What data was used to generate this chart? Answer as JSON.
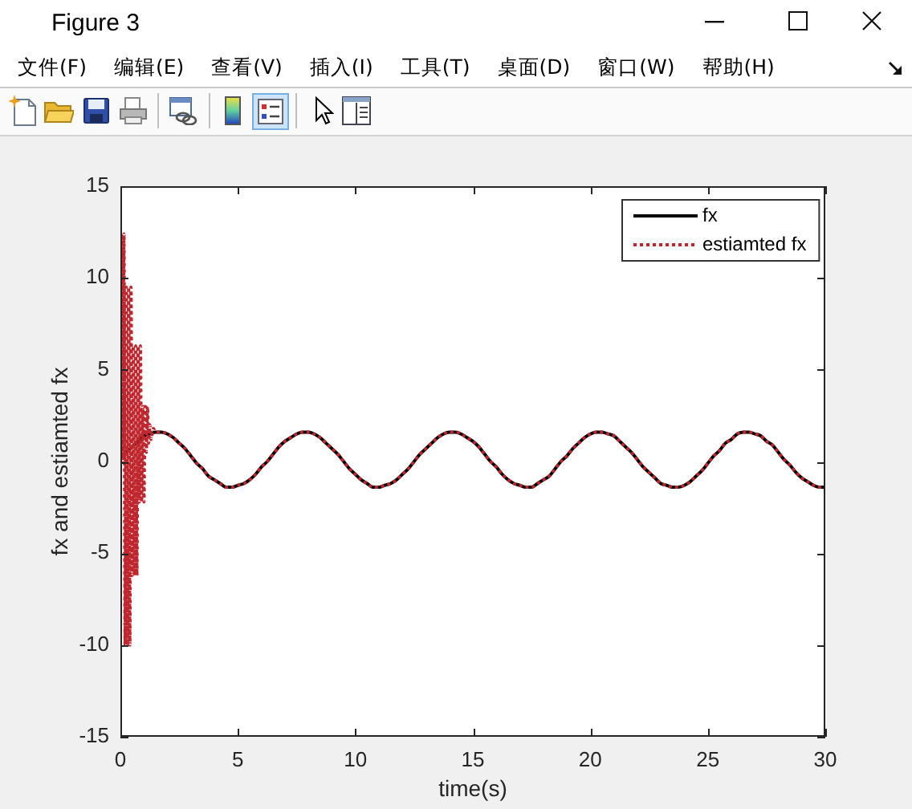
{
  "chart_data": {
    "type": "line",
    "title": "Figure 3",
    "xlabel": "time(s)",
    "ylabel": "fx and estiamted fx",
    "annotations": [
      "文件(F)",
      "编辑(E)",
      "查看(V)",
      "插入(I)",
      "工具(T)",
      "桌面(D)",
      "窗口(W)",
      "帮助(H)"
    ],
    "series": [
      {
        "name": "fx",
        "color": "#000000",
        "line_style": "solid",
        "x": [
          0,
          0.25,
          0.5,
          0.75,
          1,
          1.25,
          1.5,
          1.75,
          2,
          2.25,
          2.5,
          2.75,
          3,
          3.25,
          3.5,
          3.75,
          4,
          4.25,
          4.5,
          4.75,
          5,
          5.25,
          5.5,
          5.75,
          6,
          6.25,
          6.5,
          6.75,
          7,
          7.25,
          7.5,
          7.75,
          8,
          8.25,
          8.5,
          8.75,
          9,
          9.25,
          9.5,
          9.75,
          10,
          10.25,
          10.5,
          10.75,
          11,
          11.25,
          11.5,
          11.75,
          12,
          12.25,
          12.5,
          12.75,
          13,
          13.25,
          13.5,
          13.75,
          14,
          14.25,
          14.5,
          14.75,
          15,
          15.25,
          15.5,
          15.75,
          16,
          16.25,
          16.5,
          16.75,
          17,
          17.25,
          17.5,
          17.75,
          18,
          18.25,
          18.5,
          18.75,
          19,
          19.25,
          19.5,
          19.75,
          20,
          20.25,
          20.5,
          20.75,
          21,
          21.25,
          21.5,
          21.75,
          22,
          22.25,
          22.5,
          22.75,
          23,
          23.25,
          23.5,
          23.75,
          24,
          24.25,
          24.5,
          24.75,
          25,
          25.25,
          25.5,
          25.75,
          26,
          26.25,
          26.5,
          26.75,
          27,
          27.25,
          27.5,
          27.75,
          28,
          28.25,
          28.5,
          28.75,
          29,
          29.25,
          29.5,
          29.75,
          30
        ],
        "values": [
          0.3,
          0.5,
          0.8,
          1.1,
          1.4,
          1.5,
          1.6,
          1.6,
          1.5,
          1.3,
          1.0,
          0.7,
          0.3,
          -0.1,
          -0.4,
          -0.8,
          -1.0,
          -1.2,
          -1.4,
          -1.4,
          -1.3,
          -1.2,
          -1.0,
          -0.7,
          -0.3,
          0.0,
          0.4,
          0.8,
          1.1,
          1.3,
          1.5,
          1.6,
          1.6,
          1.5,
          1.3,
          1.0,
          0.7,
          0.4,
          0.0,
          -0.4,
          -0.7,
          -1.0,
          -1.2,
          -1.4,
          -1.4,
          -1.3,
          -1.2,
          -1.0,
          -0.7,
          -0.4,
          0.0,
          0.4,
          0.7,
          1.0,
          1.3,
          1.5,
          1.6,
          1.6,
          1.5,
          1.3,
          1.1,
          0.8,
          0.4,
          0.0,
          -0.3,
          -0.7,
          -1.0,
          -1.2,
          -1.3,
          -1.4,
          -1.4,
          -1.2,
          -1.0,
          -0.8,
          -0.4,
          0.0,
          0.3,
          0.7,
          1.0,
          1.3,
          1.5,
          1.6,
          1.6,
          1.5,
          1.4,
          1.1,
          0.8,
          0.5,
          0.1,
          -0.3,
          -0.6,
          -0.9,
          -1.2,
          -1.3,
          -1.4,
          -1.4,
          -1.3,
          -1.1,
          -0.8,
          -0.5,
          -0.1,
          0.3,
          0.6,
          1.0,
          1.2,
          1.5,
          1.6,
          1.6,
          1.5,
          1.4,
          1.1,
          0.9,
          0.5,
          0.1,
          -0.2,
          -0.6,
          -0.9,
          -1.1,
          -1.3,
          -1.4,
          -1.4
        ]
      },
      {
        "name": "estiamted fx",
        "color": "#c0262d",
        "line_style": "dotted",
        "x": [
          0,
          0.05,
          0.1,
          0.15,
          0.2,
          0.25,
          0.3,
          0.35,
          0.4,
          0.45,
          0.5,
          0.55,
          0.6,
          0.65,
          0.7,
          0.75,
          0.8,
          0.85,
          0.9,
          0.95,
          1,
          1.05,
          1.1,
          1.15,
          1.2,
          1.25,
          1.3,
          1.4,
          1.5,
          1.75,
          2,
          2.25,
          2.5,
          2.75,
          3,
          3.25,
          3.5,
          3.75,
          4,
          4.25,
          4.5,
          4.75,
          5,
          5.25,
          5.5,
          5.75,
          6,
          6.25,
          6.5,
          6.75,
          7,
          7.25,
          7.5,
          7.75,
          8,
          8.25,
          8.5,
          8.75,
          9,
          9.25,
          9.5,
          9.75,
          10,
          10.25,
          10.5,
          10.75,
          11,
          11.25,
          11.5,
          11.75,
          12,
          12.25,
          12.5,
          12.75,
          13,
          13.25,
          13.5,
          13.75,
          14,
          14.25,
          14.5,
          14.75,
          15,
          15.25,
          15.5,
          15.75,
          16,
          16.25,
          16.5,
          16.75,
          17,
          17.25,
          17.5,
          17.75,
          18,
          18.25,
          18.5,
          18.75,
          19,
          19.25,
          19.5,
          19.75,
          20,
          20.25,
          20.5,
          20.75,
          21,
          21.25,
          21.5,
          21.75,
          22,
          22.25,
          22.5,
          22.75,
          23,
          23.25,
          23.5,
          23.75,
          24,
          24.25,
          24.5,
          24.75,
          25,
          25.25,
          25.5,
          25.75,
          26,
          26.25,
          26.5,
          26.75,
          27,
          27.25,
          27.5,
          27.75,
          28,
          28.25,
          28.5,
          28.75,
          29,
          29.25,
          29.5,
          29.75,
          30
        ],
        "values": [
          0.3,
          12.4,
          0.0,
          12.4,
          -10,
          9.5,
          -10,
          9.5,
          -10,
          9.5,
          -6.2,
          6.3,
          -6.2,
          6.3,
          -6.2,
          6.3,
          -2.2,
          6.3,
          -2.2,
          3.0,
          -2.2,
          3.0,
          0.5,
          3.0,
          1.0,
          2.0,
          1.2,
          1.8,
          1.6,
          1.6,
          1.5,
          1.3,
          1.0,
          0.7,
          0.3,
          -0.1,
          -0.4,
          -0.8,
          -1.0,
          -1.2,
          -1.4,
          -1.4,
          -1.3,
          -1.2,
          -1.0,
          -0.7,
          -0.3,
          0.0,
          0.4,
          0.8,
          1.1,
          1.3,
          1.5,
          1.6,
          1.6,
          1.5,
          1.3,
          1.0,
          0.7,
          0.4,
          0.0,
          -0.4,
          -0.7,
          -1.0,
          -1.2,
          -1.4,
          -1.4,
          -1.3,
          -1.2,
          -1.0,
          -0.7,
          -0.4,
          0.0,
          0.4,
          0.7,
          1.0,
          1.3,
          1.5,
          1.6,
          1.6,
          1.5,
          1.3,
          1.1,
          0.8,
          0.4,
          0.0,
          -0.3,
          -0.7,
          -1.0,
          -1.2,
          -1.3,
          -1.4,
          -1.4,
          -1.2,
          -1.0,
          -0.8,
          -0.4,
          0.0,
          0.3,
          0.7,
          1.0,
          1.3,
          1.5,
          1.6,
          1.6,
          1.5,
          1.4,
          1.1,
          0.8,
          0.5,
          0.1,
          -0.3,
          -0.6,
          -0.9,
          -1.2,
          -1.3,
          -1.4,
          -1.4,
          -1.3,
          -1.1,
          -0.8,
          -0.5,
          -0.1,
          0.3,
          0.6,
          1.0,
          1.2,
          1.5,
          1.6,
          1.6,
          1.5,
          1.4,
          1.1,
          0.9,
          0.5,
          0.1,
          -0.2,
          -0.6,
          -0.9,
          -1.1,
          -1.3,
          -1.4,
          -1.4
        ]
      }
    ],
    "xlim": [
      0,
      30
    ],
    "ylim": [
      -15,
      15
    ],
    "xticks": [
      0,
      5,
      10,
      15,
      20,
      25,
      30
    ],
    "yticks": [
      -15,
      -10,
      -5,
      0,
      5,
      10,
      15
    ],
    "grid": false,
    "legend": "top right",
    "marker": "none"
  }
}
